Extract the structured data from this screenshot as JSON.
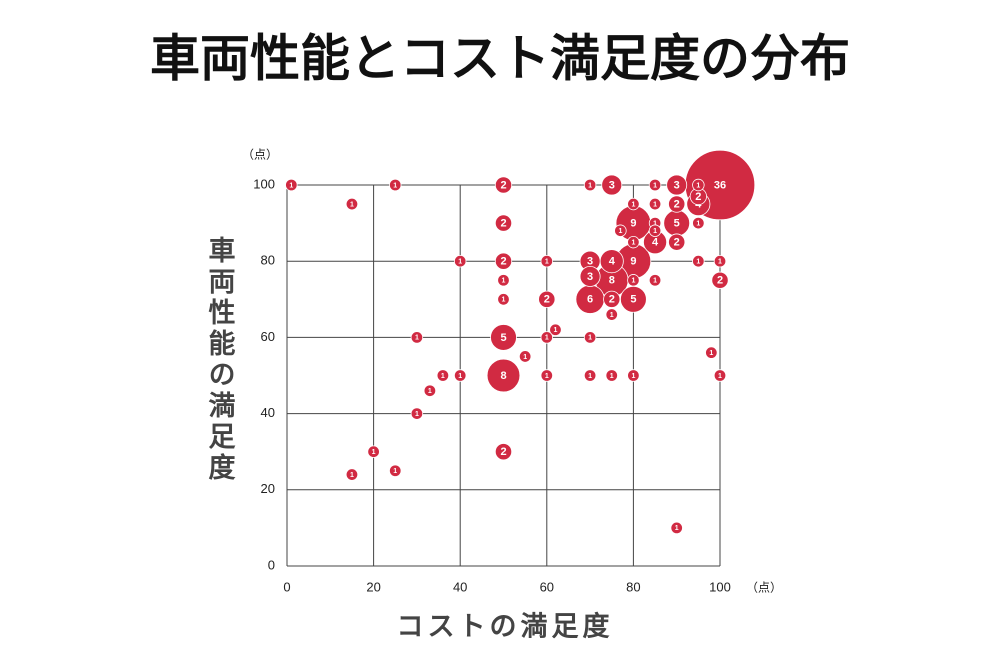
{
  "chart_data": {
    "type": "bubble",
    "title": "車両性能とコスト満足度の分布",
    "x_label": "コストの満足度",
    "y_label": "車両性能の満足度",
    "x_unit": "（点）",
    "y_unit": "（点）",
    "color": "#d12a42",
    "grid": true,
    "xlim": [
      0,
      100
    ],
    "ylim": [
      0,
      100
    ],
    "xticks": [
      0,
      20,
      40,
      60,
      80,
      100
    ],
    "yticks": [
      0,
      20,
      40,
      60,
      80,
      100
    ],
    "x": [
      1,
      25,
      50,
      70,
      75,
      85,
      90,
      95,
      100,
      15,
      95,
      95,
      80,
      85,
      90,
      50,
      80,
      90,
      95,
      77,
      85,
      85,
      80,
      85,
      90,
      40,
      50,
      60,
      70,
      75,
      80,
      95,
      100,
      50,
      70,
      75,
      80,
      85,
      100,
      50,
      60,
      70,
      75,
      80,
      75,
      62,
      30,
      50,
      60,
      70,
      98,
      55,
      36,
      40,
      50,
      60,
      70,
      75,
      80,
      100,
      33,
      30,
      20,
      50,
      15,
      25,
      90
    ],
    "values": [
      100,
      100,
      100,
      100,
      100,
      100,
      100,
      100,
      100,
      95,
      97,
      95,
      95,
      95,
      95,
      90,
      90,
      90,
      90,
      88,
      90,
      88,
      85,
      85,
      85,
      80,
      80,
      80,
      80,
      80,
      80,
      80,
      80,
      75,
      76,
      75,
      75,
      75,
      75,
      70,
      70,
      70,
      70,
      70,
      66,
      62,
      60,
      60,
      60,
      60,
      56,
      55,
      50,
      50,
      50,
      50,
      50,
      50,
      50,
      50,
      46,
      40,
      30,
      30,
      24,
      25,
      10
    ],
    "sizes": [
      1,
      1,
      2,
      1,
      3,
      1,
      3,
      1,
      36,
      1,
      2,
      4,
      1,
      1,
      2,
      2,
      9,
      5,
      1,
      1,
      1,
      1,
      1,
      4,
      2,
      1,
      2,
      1,
      3,
      4,
      9,
      1,
      1,
      1,
      3,
      8,
      1,
      1,
      2,
      1,
      2,
      6,
      2,
      5,
      1,
      1,
      1,
      5,
      1,
      1,
      1,
      1,
      1,
      1,
      8,
      1,
      1,
      1,
      1,
      1,
      1,
      1,
      1,
      2,
      1,
      1,
      1
    ]
  }
}
